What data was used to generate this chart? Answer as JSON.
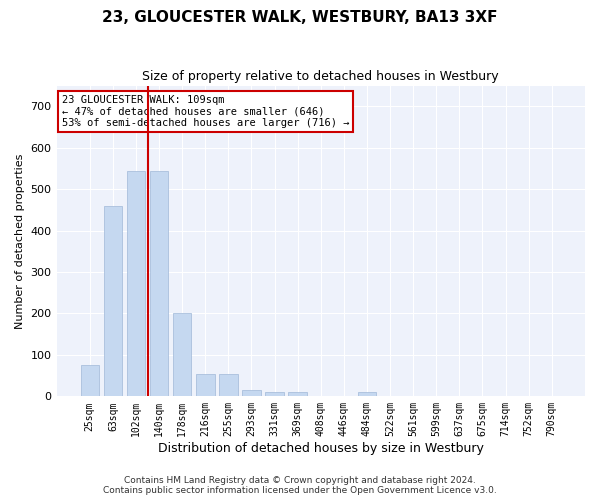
{
  "title": "23, GLOUCESTER WALK, WESTBURY, BA13 3XF",
  "subtitle": "Size of property relative to detached houses in Westbury",
  "xlabel": "Distribution of detached houses by size in Westbury",
  "ylabel": "Number of detached properties",
  "bar_color": "#c5d8f0",
  "bar_edge_color": "#a0b8d8",
  "background_color": "#ffffff",
  "plot_bg_color": "#eef2fb",
  "grid_color": "#ffffff",
  "vline_color": "#cc0000",
  "vline_x": 2.5,
  "property_label": "23 GLOUCESTER WALK: 109sqm",
  "annotation_line1": "← 47% of detached houses are smaller (646)",
  "annotation_line2": "53% of semi-detached houses are larger (716) →",
  "bin_labels": [
    "25sqm",
    "63sqm",
    "102sqm",
    "140sqm",
    "178sqm",
    "216sqm",
    "255sqm",
    "293sqm",
    "331sqm",
    "369sqm",
    "408sqm",
    "446sqm",
    "484sqm",
    "522sqm",
    "561sqm",
    "599sqm",
    "637sqm",
    "675sqm",
    "714sqm",
    "752sqm",
    "790sqm"
  ],
  "bar_values": [
    75,
    460,
    545,
    545,
    200,
    55,
    55,
    15,
    10,
    10,
    0,
    0,
    10,
    0,
    0,
    0,
    0,
    0,
    0,
    0,
    0
  ],
  "ylim": [
    0,
    750
  ],
  "yticks": [
    0,
    100,
    200,
    300,
    400,
    500,
    600,
    700
  ],
  "footer_line1": "Contains HM Land Registry data © Crown copyright and database right 2024.",
  "footer_line2": "Contains public sector information licensed under the Open Government Licence v3.0."
}
